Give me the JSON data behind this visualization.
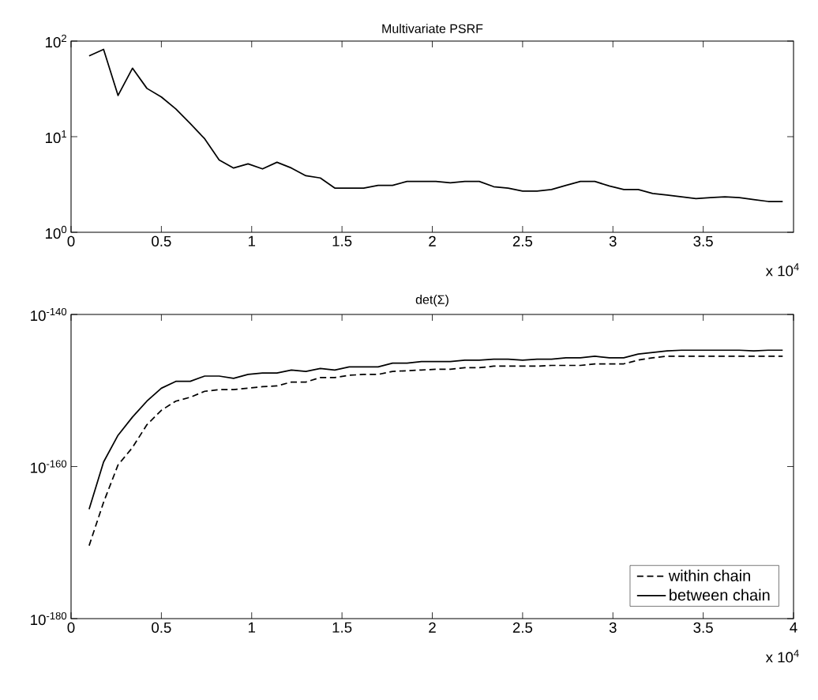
{
  "chart_data": [
    {
      "type": "line",
      "title": "Multivariate PSRF",
      "log": "y",
      "x": [
        0.1,
        0.18,
        0.26,
        0.34,
        0.42,
        0.5,
        0.58,
        0.66,
        0.74,
        0.82,
        0.9,
        0.98,
        1.06,
        1.14,
        1.22,
        1.3,
        1.38,
        1.46,
        1.54,
        1.62,
        1.7,
        1.78,
        1.86,
        1.94,
        2.02,
        2.1,
        2.18,
        2.26,
        2.34,
        2.42,
        2.5,
        2.58,
        2.66,
        2.74,
        2.82,
        2.9,
        2.98,
        3.06,
        3.14,
        3.22,
        3.3,
        3.38,
        3.46,
        3.54,
        3.62,
        3.7,
        3.78,
        3.86,
        3.94
      ],
      "series": [
        {
          "color": "#000000",
          "line_style": "solid",
          "values": [
            70,
            82,
            27,
            52,
            32,
            26,
            19.5,
            13.7,
            9.5,
            5.7,
            4.7,
            5.2,
            4.6,
            5.4,
            4.7,
            3.9,
            3.7,
            2.9,
            2.9,
            2.9,
            3.1,
            3.1,
            3.4,
            3.4,
            3.4,
            3.3,
            3.4,
            3.4,
            3.0,
            2.9,
            2.7,
            2.7,
            2.8,
            3.1,
            3.4,
            3.4,
            3.05,
            2.8,
            2.8,
            2.55,
            2.45,
            2.35,
            2.25,
            2.3,
            2.35,
            2.3,
            2.2,
            2.1,
            2.1
          ]
        }
      ],
      "xlim": [
        0,
        4
      ],
      "xticks": [
        0,
        0.5,
        1,
        1.5,
        2,
        2.5,
        3,
        3.5
      ],
      "ylim": [
        1,
        100
      ],
      "yticks": [
        {
          "value": 1,
          "label": "10$^{0}$"
        },
        {
          "value": 10,
          "label": "10$^{1}$"
        },
        {
          "value": 100,
          "label": "10$^{2}$"
        }
      ],
      "annotations": [
        "x 10$^{4}$"
      ]
    },
    {
      "type": "line",
      "title": "det(Σ)",
      "log": "y",
      "legend": "bottom right",
      "x": [
        0.1,
        0.18,
        0.26,
        0.34,
        0.42,
        0.5,
        0.58,
        0.66,
        0.74,
        0.82,
        0.9,
        0.98,
        1.06,
        1.14,
        1.22,
        1.3,
        1.38,
        1.46,
        1.54,
        1.62,
        1.7,
        1.78,
        1.86,
        1.94,
        2.02,
        2.1,
        2.18,
        2.26,
        2.34,
        2.42,
        2.5,
        2.58,
        2.66,
        2.74,
        2.82,
        2.9,
        2.98,
        3.06,
        3.14,
        3.22,
        3.3,
        3.38,
        3.46,
        3.54,
        3.62,
        3.7,
        3.78,
        3.86,
        3.94
      ],
      "series": [
        {
          "name": "within chain",
          "color": "#000000",
          "line_style": "dashed",
          "values": [
            4e-171,
            2e-165,
            1.6e-160,
            3.2e-158,
            3.2e-155,
            2.5e-153,
            4e-152,
            1.3e-151,
            7.9e-151,
            1.3e-150,
            1.3e-150,
            2e-150,
            3.2e-150,
            4e-150,
            1.3e-149,
            1.3e-149,
            5e-149,
            5e-149,
            1e-148,
            1.3e-148,
            1.3e-148,
            3.2e-148,
            4e-148,
            5e-148,
            6.3e-148,
            6.3e-148,
            1e-147,
            1e-147,
            1.6e-147,
            1.6e-147,
            1.6e-147,
            1.6e-147,
            2e-147,
            2e-147,
            2e-147,
            3.2e-147,
            3.2e-147,
            3.2e-147,
            1e-146,
            2e-146,
            3.2e-146,
            3.2e-146,
            3.2e-146,
            3.2e-146,
            3.2e-146,
            3.2e-146,
            3.2e-146,
            3.2e-146,
            3.2e-146
          ]
        },
        {
          "name": "between chain",
          "color": "#000000",
          "line_style": "solid",
          "values": [
            2.5e-166,
            4e-160,
            1.3e-156,
            3.2e-154,
            4e-152,
            2e-150,
            1.6e-149,
            1.6e-149,
            7.9e-149,
            7.9e-149,
            4e-149,
            1.3e-148,
            2e-148,
            2e-148,
            5e-148,
            3.2e-148,
            7.9e-148,
            5e-148,
            1.3e-147,
            1.3e-147,
            1.3e-147,
            4e-147,
            4e-147,
            6.3e-147,
            6.3e-147,
            6.3e-147,
            1e-146,
            1e-146,
            1.3e-146,
            1.3e-146,
            1e-146,
            1.3e-146,
            1.3e-146,
            2e-146,
            2e-146,
            3.2e-146,
            2e-146,
            2e-146,
            6.3e-146,
            1e-145,
            1.6e-145,
            2e-145,
            2e-145,
            2e-145,
            2e-145,
            2e-145,
            1.6e-145,
            2e-145,
            2e-145
          ]
        }
      ],
      "xlim": [
        0,
        4
      ],
      "xticks": [
        0,
        0.5,
        1,
        1.5,
        2,
        2.5,
        3,
        3.5,
        4
      ],
      "ylim": [
        1e-180,
        1e-140
      ],
      "yticks": [
        {
          "value": 1e-180,
          "label": "10$^{-180}$"
        },
        {
          "value": 1e-160,
          "label": "10$^{-160}$"
        },
        {
          "value": 1e-140,
          "label": "10$^{-140}$"
        }
      ],
      "annotations": [
        "x 10$^{4}$"
      ]
    }
  ]
}
